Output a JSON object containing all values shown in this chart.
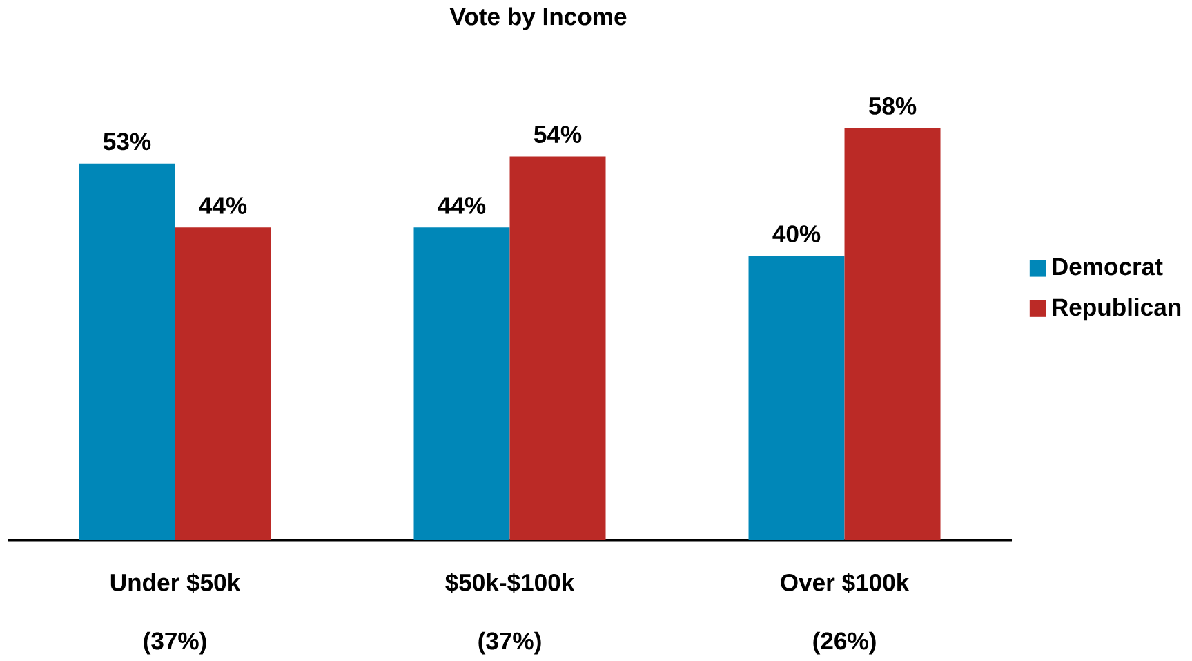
{
  "chart_data": {
    "type": "bar",
    "title": "Vote by Income",
    "categories": [
      "Under $50k",
      "$50k-$100k",
      "Over $100k"
    ],
    "series": [
      {
        "name": "Democrat",
        "color": "#0087b8",
        "values": [
          53,
          44,
          40
        ],
        "value_labels": [
          "53%",
          "44%",
          "40%"
        ]
      },
      {
        "name": "Republican",
        "color": "#bb2a26",
        "values": [
          44,
          54,
          58
        ],
        "value_labels": [
          "44%",
          "54%",
          "58%"
        ]
      }
    ],
    "annotations": [
      "(37%)",
      "(37%)",
      "(26%)"
    ],
    "legend": "right",
    "grid": false
  }
}
